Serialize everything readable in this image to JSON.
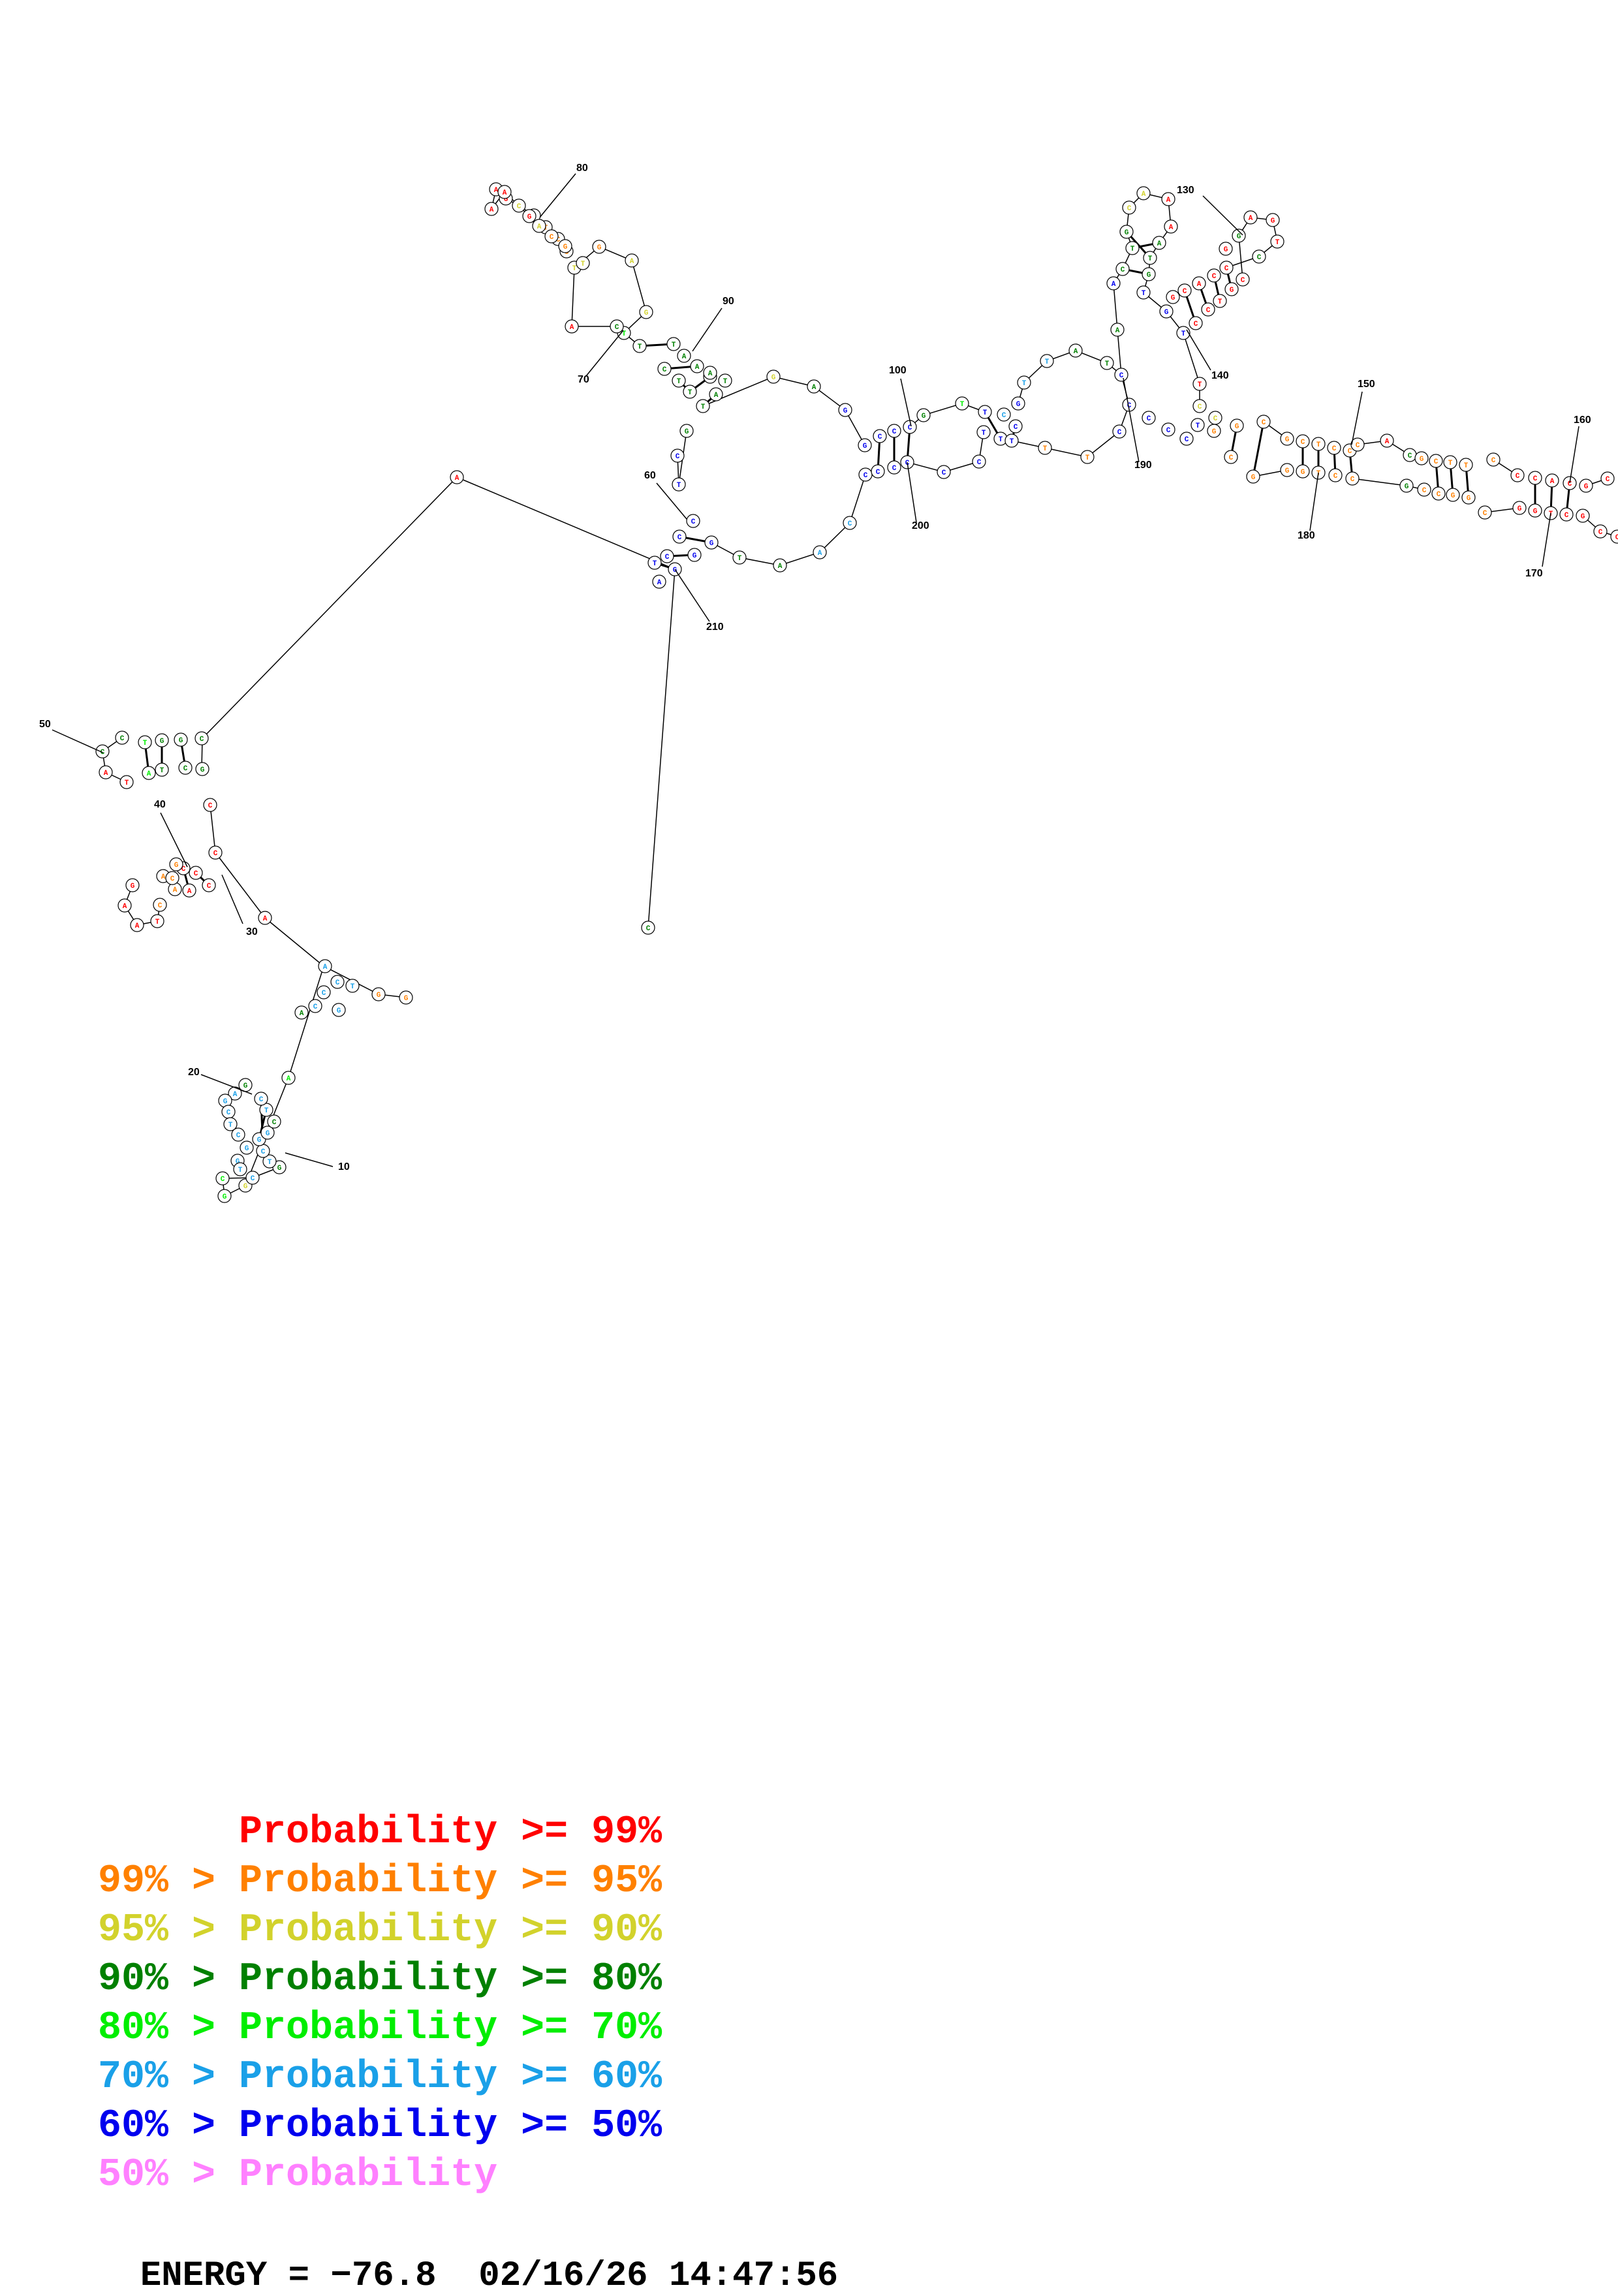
{
  "colors": {
    "p99": "#ff0000",
    "p95": "#ff8000",
    "p90": "#d2d22c",
    "p80": "#008000",
    "p70": "#00ee00",
    "p60": "#1aa0e8",
    "p50": "#0000ee",
    "plow": "#ff80ff"
  },
  "legend": [
    {
      "text": "      Probability >= 99%",
      "color_key": "p99"
    },
    {
      "text": "99% > Probability >= 95%",
      "color_key": "p95"
    },
    {
      "text": "95% > Probability >= 90%",
      "color_key": "p90"
    },
    {
      "text": "90% > Probability >= 80%",
      "color_key": "p80"
    },
    {
      "text": "80% > Probability >= 70%",
      "color_key": "p70"
    },
    {
      "text": "70% > Probability >= 60%",
      "color_key": "p60"
    },
    {
      "text": "60% > Probability >= 50%",
      "color_key": "p50"
    },
    {
      "text": "50% > Probability",
      "color_key": "plow"
    }
  ],
  "footer": {
    "energy_text": "ENERGY = −76.8  02/16/26 14:47:56"
  },
  "position_labels": [
    "10",
    "20",
    "30",
    "40",
    "50",
    "60",
    "70",
    "80",
    "90",
    "100",
    "130",
    "140",
    "150",
    "160",
    "170",
    "180",
    "190",
    "200",
    "210"
  ]
}
